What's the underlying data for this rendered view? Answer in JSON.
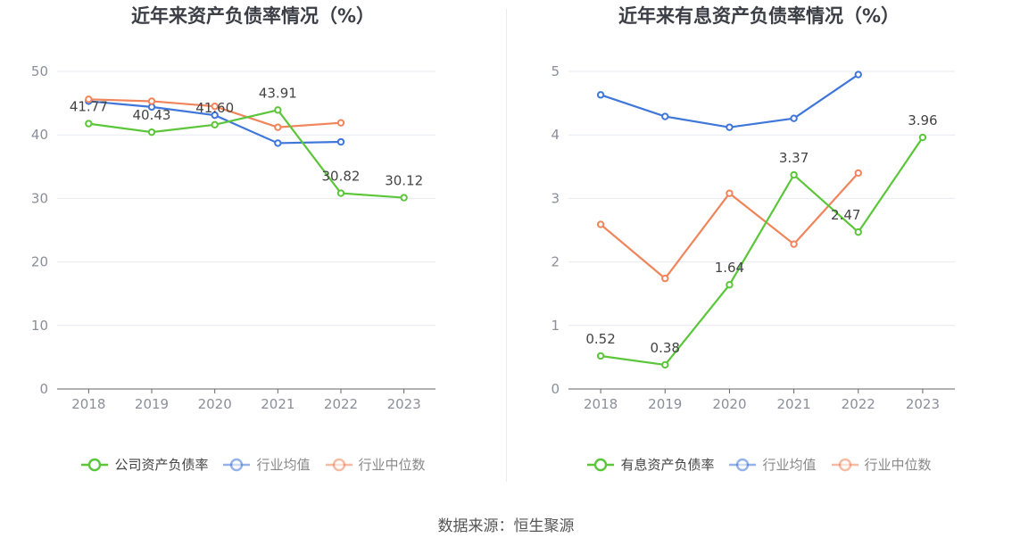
{
  "chart_data": [
    {
      "type": "line",
      "title": "近年来资产负债率情况（%）",
      "categories": [
        "2018",
        "2019",
        "2020",
        "2021",
        "2022",
        "2023"
      ],
      "ylim": [
        0,
        50
      ],
      "yticks": [
        0,
        10,
        20,
        30,
        40,
        50
      ],
      "grid": true,
      "legend_position": "bottom",
      "series": [
        {
          "name": "公司资产负债率",
          "color": "#5bc63a",
          "values": [
            41.77,
            40.43,
            41.6,
            43.91,
            30.82,
            30.12
          ],
          "labels": [
            "41.77",
            "40.43",
            "41.60",
            "43.91",
            "30.82",
            "30.12"
          ]
        },
        {
          "name": "行业均值",
          "color": "#3f76d9",
          "values": [
            45.3,
            44.4,
            43.1,
            38.7,
            38.9,
            null
          ]
        },
        {
          "name": "行业中位数",
          "color": "#f0845a",
          "values": [
            45.6,
            45.3,
            44.5,
            41.2,
            41.9,
            null
          ]
        }
      ]
    },
    {
      "type": "line",
      "title": "近年来有息资产负债率情况（%）",
      "categories": [
        "2018",
        "2019",
        "2020",
        "2021",
        "2022",
        "2023"
      ],
      "ylim": [
        0,
        5
      ],
      "yticks": [
        0,
        1,
        2,
        3,
        4,
        5
      ],
      "grid": true,
      "legend_position": "bottom",
      "series": [
        {
          "name": "有息资产负债率",
          "color": "#5bc63a",
          "values": [
            0.52,
            0.38,
            1.64,
            3.37,
            2.47,
            3.96
          ],
          "labels": [
            "0.52",
            "0.38",
            "1.64",
            "3.37",
            "2.47",
            "3.96"
          ]
        },
        {
          "name": "行业均值",
          "color": "#3f76d9",
          "values": [
            4.63,
            4.29,
            4.12,
            4.26,
            4.95,
            null
          ]
        },
        {
          "name": "行业中位数",
          "color": "#f0845a",
          "values": [
            2.59,
            1.74,
            3.08,
            2.28,
            3.4,
            null
          ]
        }
      ]
    }
  ],
  "source": "数据来源：恒生聚源"
}
